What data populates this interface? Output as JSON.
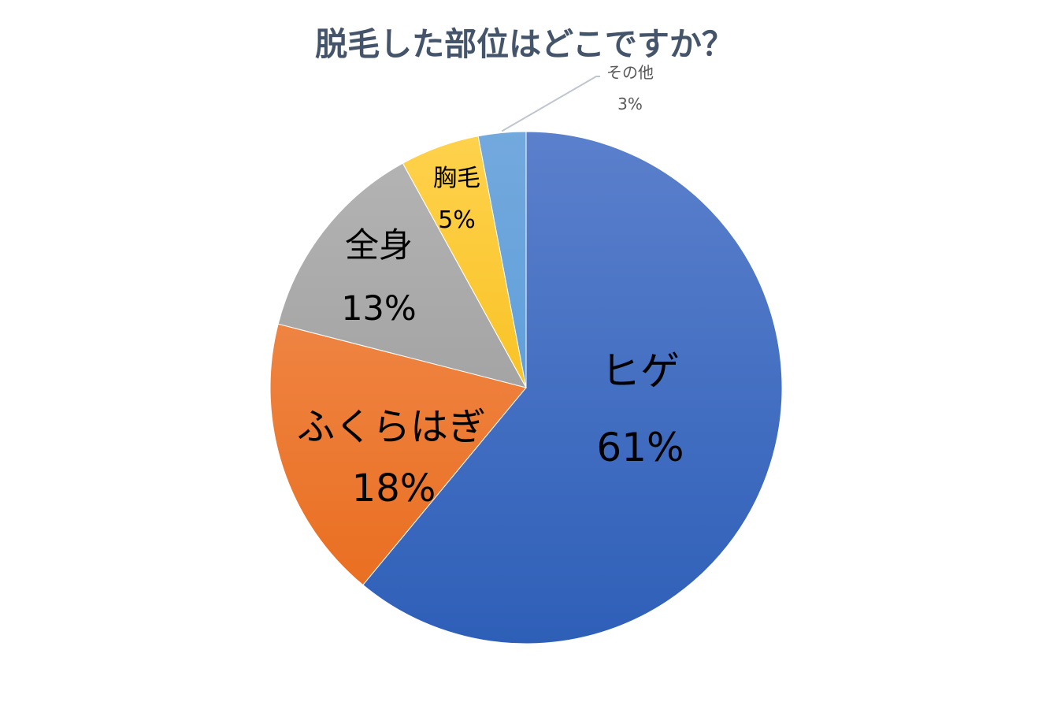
{
  "chart_data": {
    "type": "pie",
    "title": "脱毛した部位はどこですか？",
    "categories": [
      "ヒゲ",
      "ふくらはぎ",
      "全身",
      "胸毛",
      "その他"
    ],
    "values": [
      61,
      18,
      13,
      5,
      3
    ],
    "value_labels": [
      "61%",
      "18%",
      "13%",
      "5%",
      "3%"
    ],
    "start_position": "top",
    "direction": "clockwise",
    "legend": "none",
    "colors": [
      {
        "top": "#5b80cc",
        "bottom": "#2e5fb8"
      },
      {
        "top": "#f3935a",
        "bottom": "#e86a1a"
      },
      {
        "top": "#b5b5b5",
        "bottom": "#939393"
      },
      {
        "top": "#ffd24d",
        "bottom": "#f2b400"
      },
      {
        "top": "#73a9dd",
        "bottom": "#4f96d8"
      }
    ],
    "leader_line_color": "#bfc6cf",
    "title_color": "#44546a"
  }
}
